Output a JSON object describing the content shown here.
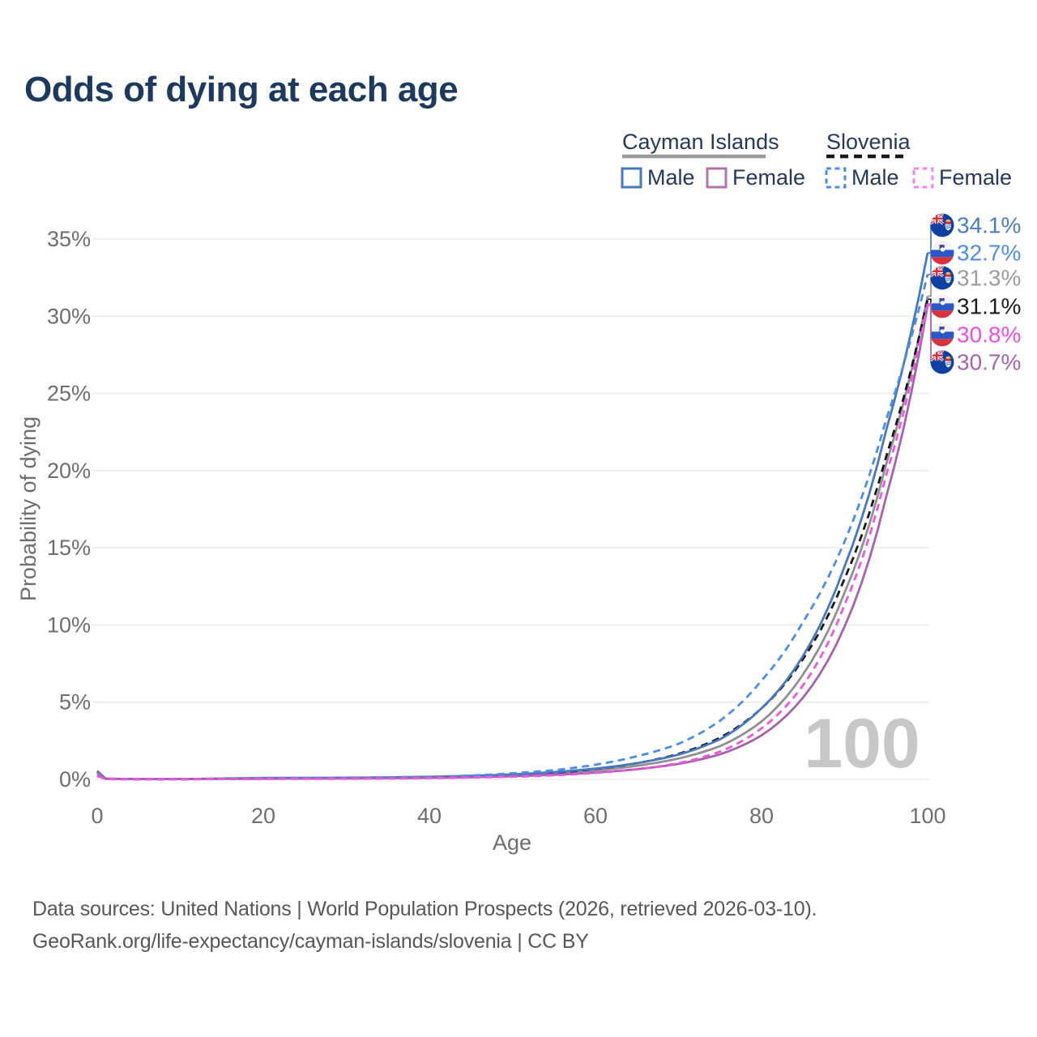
{
  "chart_data": {
    "type": "line",
    "title": "Odds of dying at each age",
    "xlabel": "Age",
    "ylabel": "Probability of dying",
    "xlim": [
      0,
      100
    ],
    "ylim_pct": [
      0,
      35
    ],
    "grid": true,
    "legend_position": "top-right",
    "x_tick_labels": [
      "0",
      "20",
      "40",
      "60",
      "80",
      "100"
    ],
    "y_tick_labels": [
      "0%",
      "5%",
      "10%",
      "15%",
      "20%",
      "25%",
      "30%",
      "35%"
    ],
    "watermark": "100",
    "x": [
      0,
      1,
      5,
      10,
      15,
      20,
      25,
      30,
      35,
      40,
      45,
      50,
      55,
      60,
      65,
      70,
      75,
      80,
      85,
      90,
      95,
      100
    ],
    "series": [
      {
        "name": "Cayman Islands Male",
        "flag": "cayman",
        "dash": "solid",
        "color": "#4678c0",
        "label_color": "#4a7dbf",
        "end_label": "34.1%",
        "values": [
          0.55,
          0.05,
          0.02,
          0.02,
          0.06,
          0.09,
          0.1,
          0.11,
          0.13,
          0.17,
          0.23,
          0.32,
          0.47,
          0.7,
          1.05,
          1.6,
          2.6,
          4.6,
          8.0,
          13.8,
          22.6,
          34.1
        ]
      },
      {
        "name": "Slovenia Male",
        "flag": "slovenia",
        "dash": "dashed",
        "color": "#4b8ded",
        "label_color": "#4a8ee8",
        "end_label": "32.7%",
        "values": [
          0.3,
          0.03,
          0.01,
          0.01,
          0.04,
          0.08,
          0.09,
          0.1,
          0.12,
          0.16,
          0.25,
          0.4,
          0.6,
          0.95,
          1.5,
          2.3,
          3.8,
          6.4,
          10.2,
          15.4,
          23.3,
          32.7
        ]
      },
      {
        "name": "Cayman Islands Both sexes",
        "flag": "cayman",
        "dash": "solid",
        "color": "#909090",
        "label_color": "#9d9da1",
        "end_label": "31.3%",
        "values": [
          0.5,
          0.04,
          0.02,
          0.02,
          0.05,
          0.07,
          0.08,
          0.09,
          0.11,
          0.14,
          0.19,
          0.27,
          0.4,
          0.58,
          0.88,
          1.35,
          2.15,
          3.75,
          6.8,
          12.1,
          20.4,
          31.3
        ]
      },
      {
        "name": "Slovenia Both sexes",
        "flag": "slovenia",
        "dash": "dashed",
        "color": "#17181c",
        "label_color": "#1c1c1c",
        "end_label": "31.1%",
        "values": [
          0.25,
          0.02,
          0.01,
          0.01,
          0.03,
          0.05,
          0.06,
          0.07,
          0.09,
          0.12,
          0.18,
          0.28,
          0.43,
          0.68,
          1.05,
          1.65,
          2.7,
          4.6,
          7.8,
          13.0,
          20.9,
          31.1
        ]
      },
      {
        "name": "Slovenia Female",
        "flag": "slovenia",
        "dash": "dashed",
        "color": "#ee57e0",
        "label_color": "#f04fdd",
        "end_label": "30.8%",
        "values": [
          0.22,
          0.02,
          0.01,
          0.01,
          0.02,
          0.03,
          0.03,
          0.04,
          0.05,
          0.08,
          0.12,
          0.17,
          0.26,
          0.42,
          0.65,
          1.05,
          1.8,
          3.3,
          6.1,
          11.3,
          19.7,
          30.8
        ]
      },
      {
        "name": "Cayman Islands Female",
        "flag": "cayman",
        "dash": "solid",
        "color": "#a562ae",
        "label_color": "#a763af",
        "end_label": "30.7%",
        "values": [
          0.45,
          0.04,
          0.02,
          0.02,
          0.03,
          0.04,
          0.05,
          0.06,
          0.08,
          0.1,
          0.14,
          0.2,
          0.3,
          0.44,
          0.66,
          1.0,
          1.62,
          2.85,
          5.3,
          9.9,
          18.3,
          30.7
        ]
      }
    ]
  },
  "legend": {
    "groups": [
      {
        "name": "Cayman Islands",
        "underline_style": "solid",
        "underline_color": "#9a9a9a",
        "items": [
          {
            "label": "Male",
            "color": "#4678c0",
            "dash": "solid"
          },
          {
            "label": "Female",
            "color": "#b173af",
            "dash": "solid"
          }
        ]
      },
      {
        "name": "Slovenia",
        "underline_style": "dashed",
        "underline_color": "#17181c",
        "items": [
          {
            "label": "Male",
            "color": "#4b8ded",
            "dash": "dashed"
          },
          {
            "label": "Female",
            "color": "#f784ec",
            "dash": "dashed"
          }
        ]
      }
    ]
  },
  "footer": {
    "line1": "Data sources: United Nations | World Population Prospects (2026, retrieved 2026-03-10).",
    "line2": "GeoRank.org/life-expectancy/cayman-islands/slovenia | CC BY"
  },
  "theme": {
    "title_color": "#1d3a5e",
    "axis_text_color": "#6e6e6e",
    "gridline_color": "#ebebeb",
    "watermark_color": "#c7c7c7"
  }
}
